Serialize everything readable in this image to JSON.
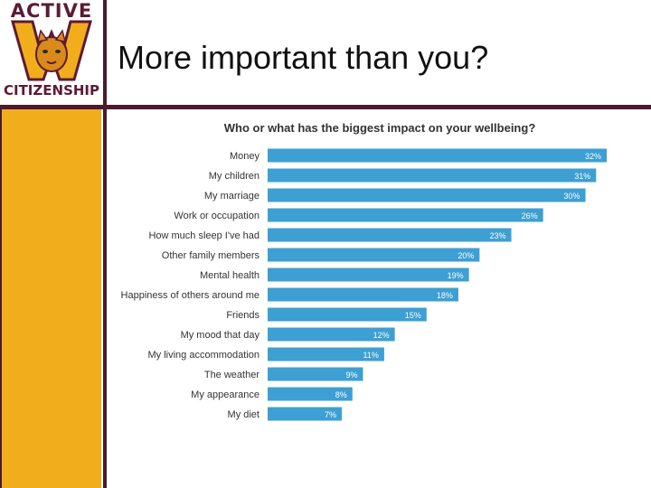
{
  "logo": {
    "top_text": "ACTIVE",
    "bottom_text": "CITIZENSHIP",
    "emblem": "wildcat-w-emblem"
  },
  "slide": {
    "title": "More important than you?"
  },
  "colors": {
    "bar": "#3d9fd2",
    "sidebar": "#f2ad1c",
    "frame": "#4a1a2e",
    "logo_text": "#5c1a36"
  },
  "chart_data": {
    "type": "bar",
    "orientation": "horizontal",
    "title": "Who or what has the biggest impact on your wellbeing?",
    "categories": [
      "Money",
      "My children",
      "My marriage",
      "Work or occupation",
      "How much sleep I've had",
      "Other family members",
      "Mental health",
      "Happiness of others around me",
      "Friends",
      "My mood that day",
      "My living accommodation",
      "The weather",
      "My appearance",
      "My diet"
    ],
    "values": [
      32,
      31,
      30,
      26,
      23,
      20,
      19,
      18,
      15,
      12,
      11,
      9,
      8,
      7
    ],
    "value_labels": [
      "32%",
      "31%",
      "30%",
      "26%",
      "23%",
      "20%",
      "19%",
      "18%",
      "15%",
      "12%",
      "11%",
      "9%",
      "8%",
      "7%"
    ],
    "unit": "%",
    "xlim": [
      0,
      32
    ],
    "grid": false,
    "legend": "none"
  }
}
